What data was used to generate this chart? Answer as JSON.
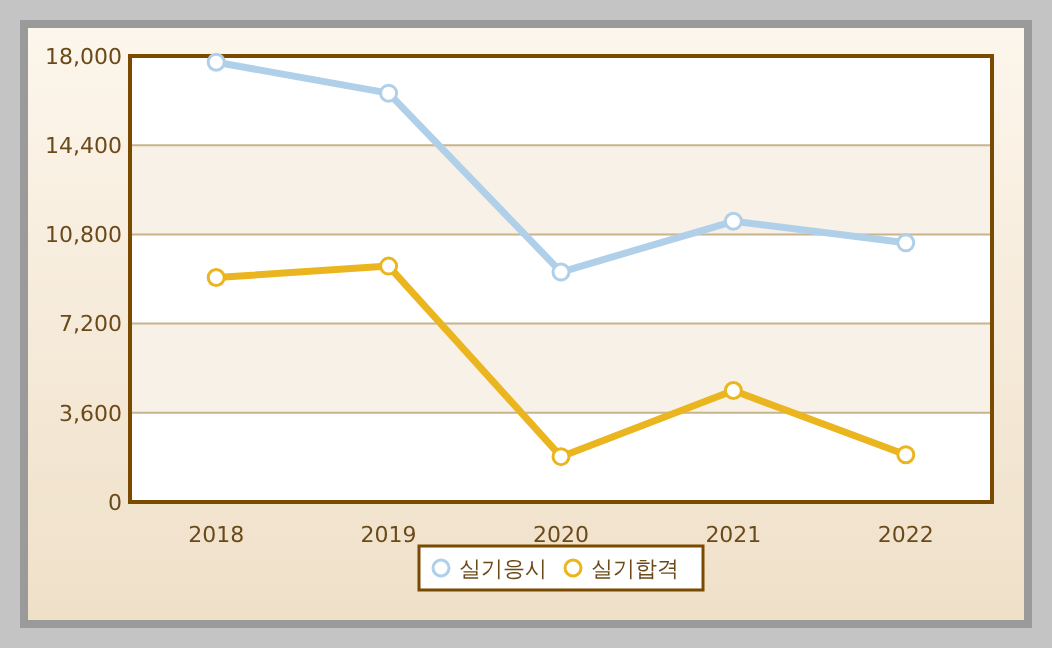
{
  "chart_data": {
    "type": "line",
    "categories": [
      "2018",
      "2019",
      "2020",
      "2021",
      "2022"
    ],
    "series": [
      {
        "name": "실기응시",
        "color": "#b0d0ea",
        "values": [
          17750,
          16500,
          9280,
          11330,
          10460
        ]
      },
      {
        "name": "실기합격",
        "color": "#eab51e",
        "values": [
          9060,
          9520,
          1830,
          4500,
          1910
        ]
      }
    ],
    "ylim": [
      0,
      18000
    ],
    "yticks": [
      0,
      {
        "value": 3600,
        "label": "3,600"
      },
      {
        "value": 7200,
        "label": "7,200"
      },
      {
        "value": 10800,
        "label": "10,800"
      },
      {
        "value": 14400,
        "label": "14,400"
      },
      {
        "value": 18000,
        "label": "18,000"
      }
    ],
    "grid": "y",
    "legend": "bottom",
    "marker": "circle",
    "line_style": "solid"
  }
}
